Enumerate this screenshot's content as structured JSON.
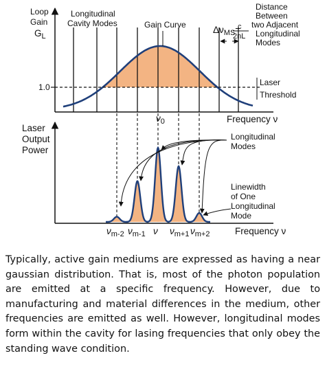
{
  "figure": {
    "top": {
      "y_label": [
        "Loop",
        "Gain",
        "G"
      ],
      "y_label_sub": "L",
      "modes_label": [
        "Longitudinal",
        "Cavity Modes"
      ],
      "gain_curve_label": "Gain Curve",
      "spacing_label": [
        "Distance",
        "Between",
        "two Adjacent",
        "Longitudinal",
        "Modes"
      ],
      "spacing_formula": {
        "delta": "Δν",
        "sub": "MS",
        "eq": "=",
        "num": "c",
        "den": "2nL"
      },
      "threshold_label": [
        "Laser",
        "Threshold"
      ],
      "threshold_tick": "1.0",
      "center_label": "ν",
      "center_sub": "0",
      "x_label": "Frequency ν"
    },
    "bottom": {
      "y_label": [
        "Laser",
        "Output",
        "Power"
      ],
      "modes_label": [
        "Longitudinal",
        "Modes"
      ],
      "linewidth_label": [
        "Linewidth",
        "of One",
        "Longitudinal",
        "Mode"
      ],
      "x_label": "Frequency ν",
      "mode_ticks": [
        {
          "main": "ν",
          "sub": "m-2"
        },
        {
          "main": "ν",
          "sub": "m-1"
        },
        {
          "main": "ν",
          "sub": ""
        },
        {
          "main": "ν",
          "sub": "m+1"
        },
        {
          "main": "ν",
          "sub": "m+2"
        }
      ],
      "relative_peak_heights": [
        0.07,
        0.55,
        1.0,
        0.75,
        0.12
      ]
    },
    "colors": {
      "curve": "#1f3f7a",
      "fill": "#f3b483",
      "axis": "#111111"
    }
  },
  "caption": "Typically, active gain mediums are expressed as having a near gaussian distribution. That is, most of the photon population are emitted at a specific frequency. However, due to manufacturing and material differences in the medium, other frequencies are emitted as well. However, longitudinal modes form within the cavity for lasing frequencies that only obey the standing wave condition."
}
